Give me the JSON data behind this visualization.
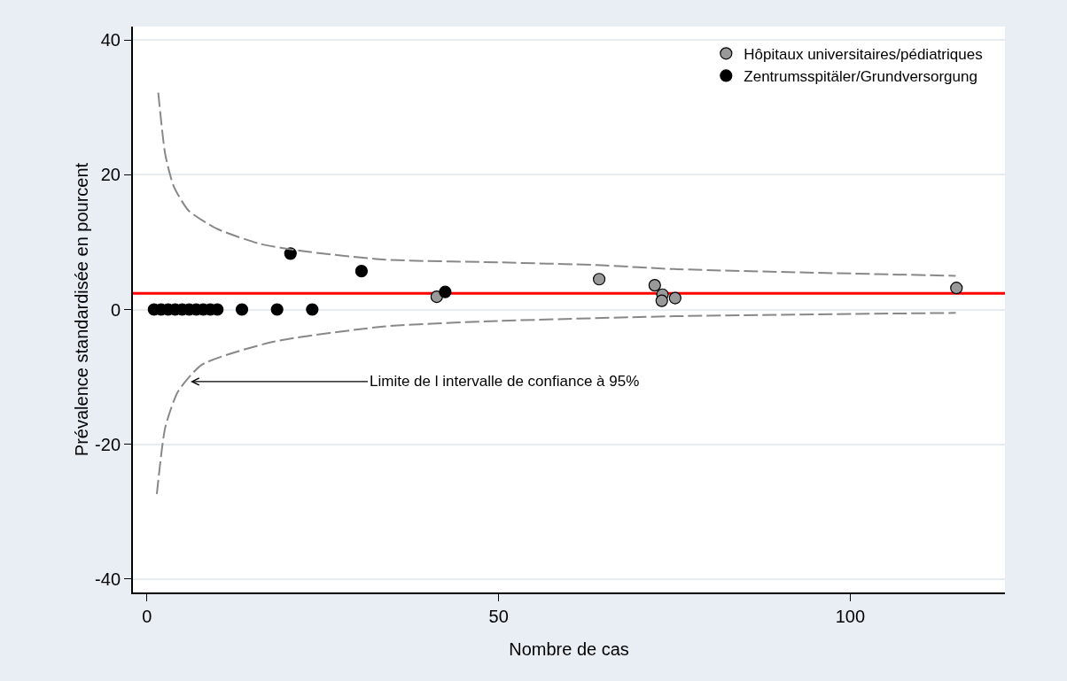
{
  "chart_data": {
    "type": "scatter",
    "xlabel": "Nombre de cas",
    "ylabel": "Prévalence standardisée en pourcent",
    "xlim": [
      -2,
      122
    ],
    "xticks": [
      0,
      50,
      100
    ],
    "ylim": [
      -42,
      42
    ],
    "yticks": [
      -40,
      -20,
      0,
      20,
      40
    ],
    "grid": "y",
    "legend": "top right",
    "marker": "circle",
    "series": [
      {
        "name": "Hôpitaux universitaires/pédiatriques",
        "color": "#999999",
        "x": [
          41.2,
          64.3,
          72.2,
          73.3,
          73.2,
          75.1,
          115.1
        ],
        "values": [
          1.9,
          4.5,
          3.6,
          2.2,
          1.3,
          1.7,
          3.2
        ]
      },
      {
        "name": "Zentrumsspitäler/Grundversorgung",
        "color": "#000000",
        "x": [
          1,
          2,
          3,
          4,
          5,
          6,
          7,
          8,
          9,
          10,
          13.5,
          18.5,
          23.5,
          20.4,
          30.5,
          42.4
        ],
        "values": [
          0,
          0,
          0,
          0,
          0,
          0,
          0,
          0,
          0,
          0,
          0,
          0,
          0,
          8.3,
          5.7,
          2.6
        ]
      },
      {
        "type": "line",
        "color": "#888888",
        "line_style": "dashed",
        "marker": "none",
        "x": [
          1.6,
          2.6,
          3.8,
          5.9,
          9.9,
          15.9,
          21.9,
          33.9,
          50,
          64,
          75,
          115
        ],
        "values": [
          32.2,
          23,
          18.3,
          14.7,
          12,
          9.8,
          8.7,
          7.4,
          7,
          6.6,
          6,
          5
        ]
      },
      {
        "type": "line",
        "color": "#888888",
        "line_style": "dashed",
        "marker": "none",
        "x": [
          1.4,
          2.6,
          4.4,
          7.8,
          17.9,
          33.9,
          50,
          75,
          115
        ],
        "values": [
          -27.4,
          -17.5,
          -12.2,
          -8.2,
          -4.8,
          -2.5,
          -1.7,
          -1,
          -0.5
        ]
      }
    ],
    "ref_lines": [
      {
        "axis": "y",
        "value": 2.4,
        "color": "#ff0000",
        "line_style": "solid"
      }
    ],
    "annotations": [
      {
        "text": "Limite de l intervalle de confiance à 95%",
        "x": 6.2,
        "y": -10.7
      }
    ]
  }
}
